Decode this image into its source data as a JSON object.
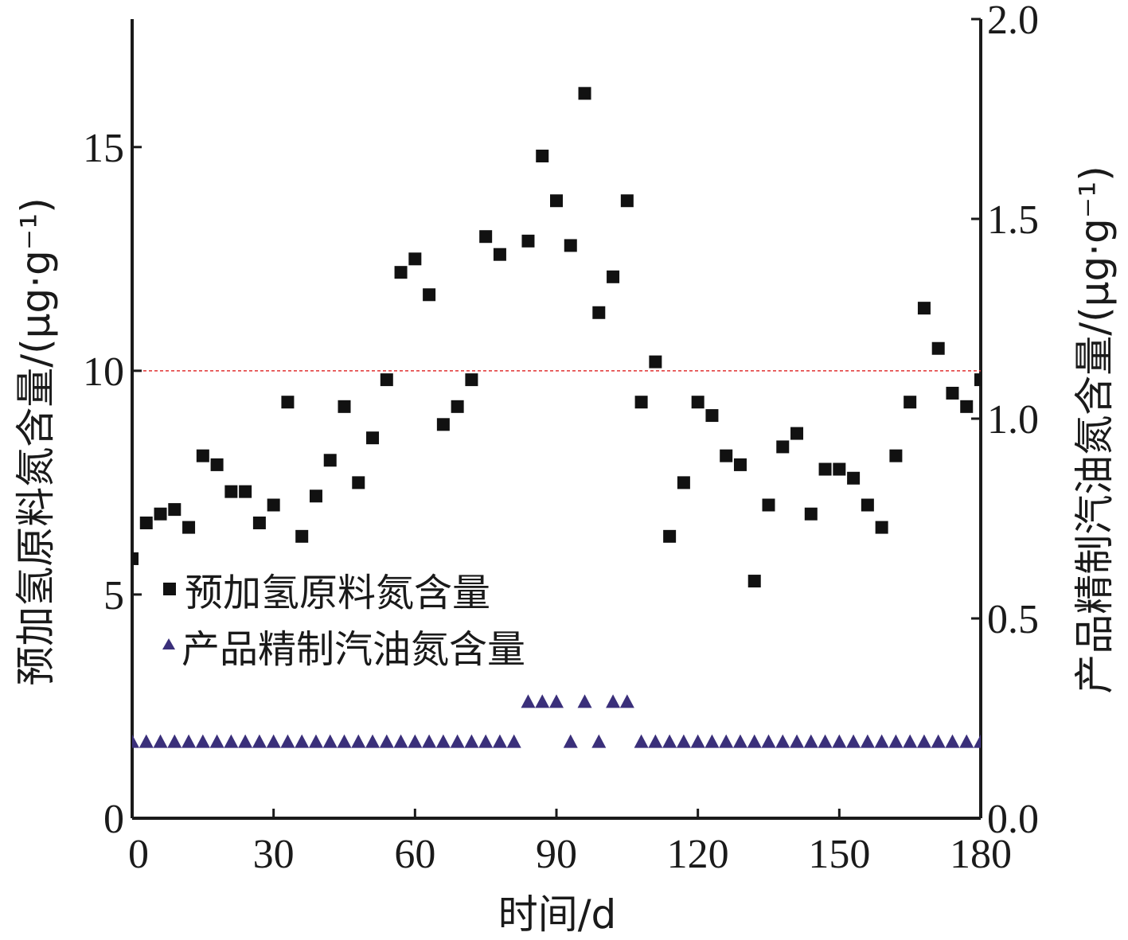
{
  "chart_data": {
    "type": "scatter",
    "xlabel": "时间/d",
    "ylabel_left": "预加氢原料氮含量/(μg·g⁻¹)",
    "ylabel_right": "产品精制汽油氮含量/(μg·g⁻¹)",
    "xlim": [
      0,
      180
    ],
    "ylim_left": [
      0,
      17.86
    ],
    "ylim_right": [
      0,
      2.0
    ],
    "xticks": [
      "0",
      "30",
      "60",
      "90",
      "120",
      "150",
      "180"
    ],
    "yticks_left": [
      "0",
      "5",
      "10",
      "15"
    ],
    "yticks_right": [
      "0.0",
      "0.5",
      "1.0",
      "1.5",
      "2.0"
    ],
    "reference_line": {
      "axis": "left",
      "y": 10,
      "color": "#e03030",
      "style": "dashed"
    },
    "legend_position": "lower-left",
    "series": [
      {
        "name": "预加氢原料氮含量",
        "axis": "left",
        "marker": "square",
        "color": "#111111",
        "x": [
          0,
          3,
          6,
          9,
          12,
          15,
          18,
          21,
          24,
          27,
          30,
          33,
          36,
          39,
          42,
          45,
          48,
          51,
          54,
          57,
          60,
          63,
          66,
          69,
          72,
          75,
          78,
          84,
          87,
          90,
          93,
          96,
          99,
          102,
          105,
          108,
          111,
          114,
          117,
          120,
          123,
          126,
          129,
          132,
          135,
          138,
          141,
          144,
          147,
          150,
          153,
          156,
          159,
          162,
          165,
          168,
          171,
          174,
          177,
          180
        ],
        "y": [
          5.8,
          6.6,
          6.8,
          6.9,
          6.5,
          8.1,
          7.9,
          7.3,
          7.3,
          6.6,
          7.0,
          9.3,
          6.3,
          7.2,
          8.0,
          9.2,
          7.5,
          8.5,
          9.8,
          12.2,
          12.5,
          11.7,
          8.8,
          9.2,
          9.8,
          13.0,
          12.6,
          12.9,
          14.8,
          13.8,
          12.8,
          16.2,
          11.3,
          12.1,
          13.8,
          9.3,
          10.2,
          6.3,
          7.5,
          9.3,
          9.0,
          8.1,
          7.9,
          5.3,
          7.0,
          8.3,
          8.6,
          6.8,
          7.8,
          7.8,
          7.6,
          7.0,
          6.5,
          8.1,
          9.3,
          11.4,
          10.5,
          9.5,
          9.2,
          9.8
        ]
      },
      {
        "name": "产品精制汽油氮含量",
        "axis": "right",
        "marker": "triangle",
        "color": "#3a2f7a",
        "x": [
          0,
          3,
          6,
          9,
          12,
          15,
          18,
          21,
          24,
          27,
          30,
          33,
          36,
          39,
          42,
          45,
          48,
          51,
          54,
          57,
          60,
          63,
          66,
          69,
          72,
          75,
          78,
          81,
          84,
          87,
          90,
          93,
          96,
          99,
          102,
          105,
          108,
          111,
          114,
          117,
          120,
          123,
          126,
          129,
          132,
          135,
          138,
          141,
          144,
          147,
          150,
          153,
          156,
          159,
          162,
          165,
          168,
          171,
          174,
          177,
          180
        ],
        "y": [
          0.19,
          0.19,
          0.19,
          0.19,
          0.19,
          0.19,
          0.19,
          0.19,
          0.19,
          0.19,
          0.19,
          0.19,
          0.19,
          0.19,
          0.19,
          0.19,
          0.19,
          0.19,
          0.19,
          0.19,
          0.19,
          0.19,
          0.19,
          0.19,
          0.19,
          0.19,
          0.19,
          0.19,
          0.29,
          0.29,
          0.29,
          0.19,
          0.29,
          0.19,
          0.29,
          0.29,
          0.19,
          0.19,
          0.19,
          0.19,
          0.19,
          0.19,
          0.19,
          0.19,
          0.19,
          0.19,
          0.19,
          0.19,
          0.19,
          0.19,
          0.19,
          0.19,
          0.19,
          0.19,
          0.19,
          0.19,
          0.19,
          0.19,
          0.19,
          0.19,
          0.19
        ]
      }
    ]
  }
}
